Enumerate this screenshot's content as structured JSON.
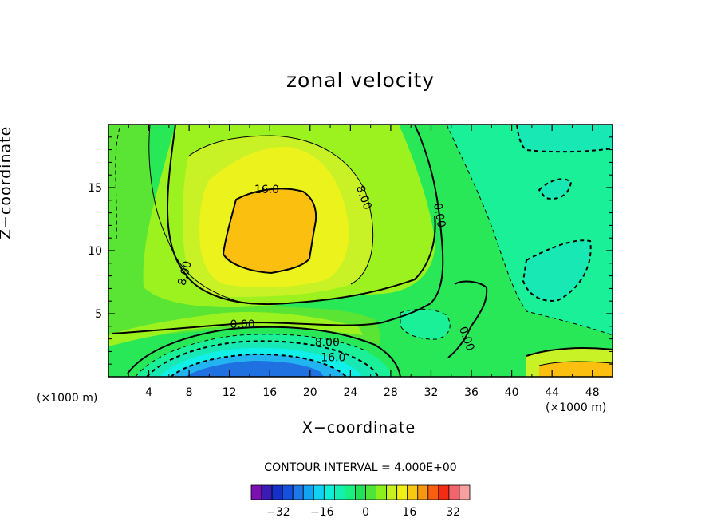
{
  "chart_data": {
    "type": "contour",
    "title": "zonal velocity",
    "xlabel": "X−coordinate",
    "ylabel": "Z−coordinate",
    "x_unit_label": "(×1000 m)",
    "xlim": [
      0,
      50
    ],
    "ylim": [
      0,
      20
    ],
    "x_ticks": [
      "4",
      "8",
      "12",
      "16",
      "20",
      "24",
      "28",
      "32",
      "36",
      "40",
      "44",
      "48"
    ],
    "x_tick_values": [
      4,
      8,
      12,
      16,
      20,
      24,
      28,
      32,
      36,
      40,
      44,
      48
    ],
    "y_ticks": [
      "5",
      "10",
      "15"
    ],
    "y_tick_values": [
      5,
      10,
      15
    ],
    "contour_interval_text": "CONTOUR INTERVAL = 4.000E+00",
    "contour_interval": 4,
    "field": [
      {
        "level": 20,
        "color": "#fbbf10",
        "note": "max near x 16, z 11"
      },
      {
        "level": 16,
        "color": "#ecf21c"
      },
      {
        "level": 12,
        "color": "#c8f226"
      },
      {
        "level": 8,
        "color": "#9cf21e"
      },
      {
        "level": 4,
        "color": "#5ae434"
      },
      {
        "level": 0,
        "color": "#28e858"
      },
      {
        "level": -4,
        "color": "#1af098"
      },
      {
        "level": -8,
        "color": "#18e8b4"
      },
      {
        "level": -12,
        "color": "#10f0e8"
      },
      {
        "level": -16,
        "color": "#22b4f0"
      },
      {
        "level": -20,
        "color": "#1f70e0"
      }
    ],
    "contour_labels": [
      {
        "text": "16.0",
        "x": 15.7,
        "z": 14.8
      },
      {
        "text": "8.00",
        "x": 25.3,
        "z": 14.2,
        "angle": 70
      },
      {
        "text": "8.00",
        "x": 7.6,
        "z": 8.2,
        "angle": -75
      },
      {
        "text": "0.00",
        "x": 32.8,
        "z": 12.8,
        "angle": 80
      },
      {
        "text": "0.00",
        "x": 13.3,
        "z": 4.1
      },
      {
        "text": "0.00",
        "x": 35.5,
        "z": 3.0,
        "angle": 70
      },
      {
        "text": "8.00",
        "x": 21.7,
        "z": 2.7
      },
      {
        "text": "16.0",
        "x": 22.3,
        "z": 1.5
      }
    ],
    "colorbar": {
      "levels": [
        -40,
        -36,
        -32,
        -28,
        -24,
        -20,
        -16,
        -12,
        -8,
        -4,
        0,
        4,
        8,
        12,
        16,
        20,
        24,
        28,
        32,
        36,
        40
      ],
      "colors": [
        "#7a10b0",
        "#3a1cb4",
        "#1430c8",
        "#1450dc",
        "#1e78ec",
        "#10a4f4",
        "#10d2f4",
        "#10eed8",
        "#14f0b0",
        "#18f080",
        "#22e058",
        "#4ee438",
        "#8cf01c",
        "#c8f020",
        "#f0f014",
        "#f8c810",
        "#f89810",
        "#f86010",
        "#f42c14",
        "#f4646c",
        "#f8a0a0"
      ],
      "tick_labels": [
        "−32",
        "−16",
        "0",
        "16",
        "32"
      ],
      "tick_values": [
        -32,
        -16,
        0,
        16,
        32
      ]
    },
    "grid": false
  }
}
